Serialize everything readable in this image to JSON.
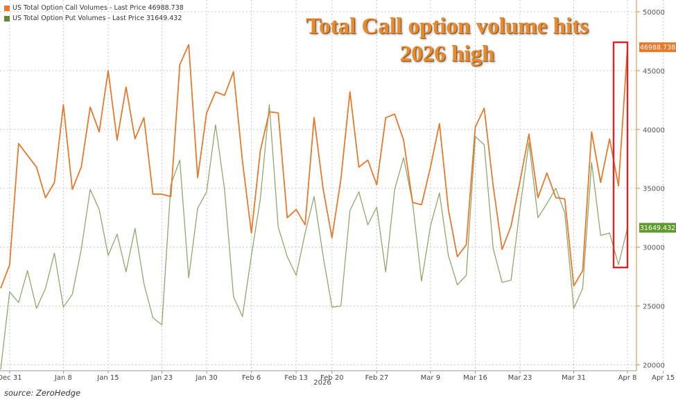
{
  "headline": {
    "line1": "Total Call option volume hits",
    "line2": "2026 high"
  },
  "legend": [
    {
      "label": "US Total Option Call Volumes - Last Price 46988.738",
      "color": "#e8782a"
    },
    {
      "label": "US Total Option Put Volumes - Last Price 31649.432",
      "color": "#8fa86a"
    }
  ],
  "source": "source: ZeroHedge",
  "chart_data": {
    "type": "line",
    "title": "Total Call option volume hits 2026 high",
    "xlabel": "2026",
    "ylabel": "",
    "ylim": [
      19500,
      51000
    ],
    "yticks": [
      20000,
      25000,
      30000,
      35000,
      40000,
      45000,
      50000
    ],
    "xticks": [
      {
        "label": "Dec 31",
        "index": 1
      },
      {
        "label": "Jan 8",
        "index": 7
      },
      {
        "label": "Jan 15",
        "index": 12
      },
      {
        "label": "Jan 23",
        "index": 18
      },
      {
        "label": "Jan 30",
        "index": 23
      },
      {
        "label": "Feb 6",
        "index": 28
      },
      {
        "label": "Feb 13",
        "index": 33
      },
      {
        "label": "Feb 20",
        "index": 37
      },
      {
        "label": "Feb 27",
        "index": 42
      },
      {
        "label": "Mar 9",
        "index": 48
      },
      {
        "label": "Mar 16",
        "index": 53
      },
      {
        "label": "Mar 23",
        "index": 58
      },
      {
        "label": "Mar 31",
        "index": 64
      },
      {
        "label": "Apr 8",
        "index": 70
      },
      {
        "label": "Apr 15",
        "index": 74
      }
    ],
    "series": [
      {
        "name": "US Total Option Call Volumes",
        "color": "#e8782a",
        "last_value": 46988.738,
        "last_label": "46988.738",
        "values": [
          26500,
          28500,
          38800,
          37800,
          36800,
          34200,
          35500,
          42100,
          34900,
          36800,
          41900,
          39800,
          45000,
          39100,
          43600,
          39200,
          41000,
          34500,
          34500,
          34300,
          45500,
          47200,
          35900,
          41400,
          43200,
          42900,
          44900,
          37300,
          31200,
          38200,
          41500,
          41400,
          32500,
          33200,
          31900,
          41000,
          35000,
          30800,
          35800,
          43200,
          36800,
          37400,
          35300,
          41000,
          41300,
          39100,
          33800,
          33600,
          36800,
          40500,
          33200,
          29200,
          30200,
          40200,
          41800,
          35200,
          29800,
          31800,
          35600,
          39600,
          34200,
          36300,
          34200,
          34100,
          26700,
          28000,
          39800,
          35500,
          39200,
          35200,
          46988.738
        ]
      },
      {
        "name": "US Total Option Put Volumes",
        "color": "#8fa86a",
        "last_value": 31649.432,
        "last_label": "31649.432",
        "values": [
          19600,
          26200,
          25300,
          28000,
          24800,
          26500,
          29500,
          24900,
          26000,
          29800,
          34900,
          33200,
          29300,
          31100,
          27900,
          31600,
          26900,
          24000,
          23400,
          35300,
          37400,
          27400,
          33300,
          34700,
          40400,
          34900,
          25800,
          24100,
          29300,
          34100,
          42100,
          31700,
          29200,
          27600,
          31200,
          34300,
          29300,
          24900,
          25000,
          33100,
          34700,
          31900,
          33400,
          27900,
          34900,
          37600,
          33800,
          27100,
          31800,
          34600,
          29300,
          26800,
          27600,
          39400,
          38700,
          29900,
          27000,
          27200,
          33300,
          38900,
          32500,
          33700,
          35000,
          32900,
          24800,
          26500,
          37200,
          31000,
          31200,
          28500,
          31649.432
        ]
      }
    ]
  }
}
